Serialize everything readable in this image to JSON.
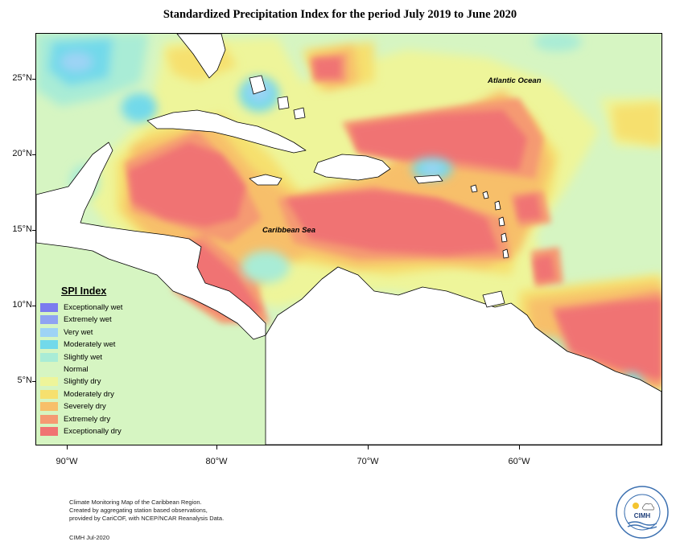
{
  "title": "Standardized Precipitation Index for the period July 2019 to June 2020",
  "latitude_labels": [
    "25°N",
    "20°N",
    "15°N",
    "10°N",
    "5°N"
  ],
  "longitude_labels": [
    "90°W",
    "80°W",
    "70°W",
    "60°W"
  ],
  "ocean_labels": {
    "atlantic": "Atlantic Ocean",
    "caribbean": "Caribbean Sea"
  },
  "legend": {
    "title": "SPI Index",
    "items": [
      {
        "label": "Exceptionally wet",
        "color": "#7b7bef"
      },
      {
        "label": "Extremely wet",
        "color": "#8fa3f2"
      },
      {
        "label": "Very wet",
        "color": "#9ed3f5"
      },
      {
        "label": "Moderately wet",
        "color": "#72d9ea"
      },
      {
        "label": "Slightly wet",
        "color": "#a9ecd6"
      },
      {
        "label": "Normal",
        "color": "#d6f5c2"
      },
      {
        "label": "Slightly dry",
        "color": "#eef59a"
      },
      {
        "label": "Moderately dry",
        "color": "#f6e06e"
      },
      {
        "label": "Severely dry",
        "color": "#f7bf6a"
      },
      {
        "label": "Extremely dry",
        "color": "#f59a72"
      },
      {
        "label": "Exceptionally dry",
        "color": "#f07373"
      }
    ]
  },
  "footer": {
    "line1": "Climate Monitoring Map of the Caribbean Region.",
    "line2": "Created by aggregating station based observations,",
    "line3": "provided by CariCOF, with NCEP/NCAR Reanalysis Data.",
    "credit": "CIMH Jul-2020"
  },
  "logo": {
    "text": "CIMH",
    "ring_text_top": "Caribbean Institute for",
    "ring_text_bottom": "Meteorology and Hydrology"
  }
}
